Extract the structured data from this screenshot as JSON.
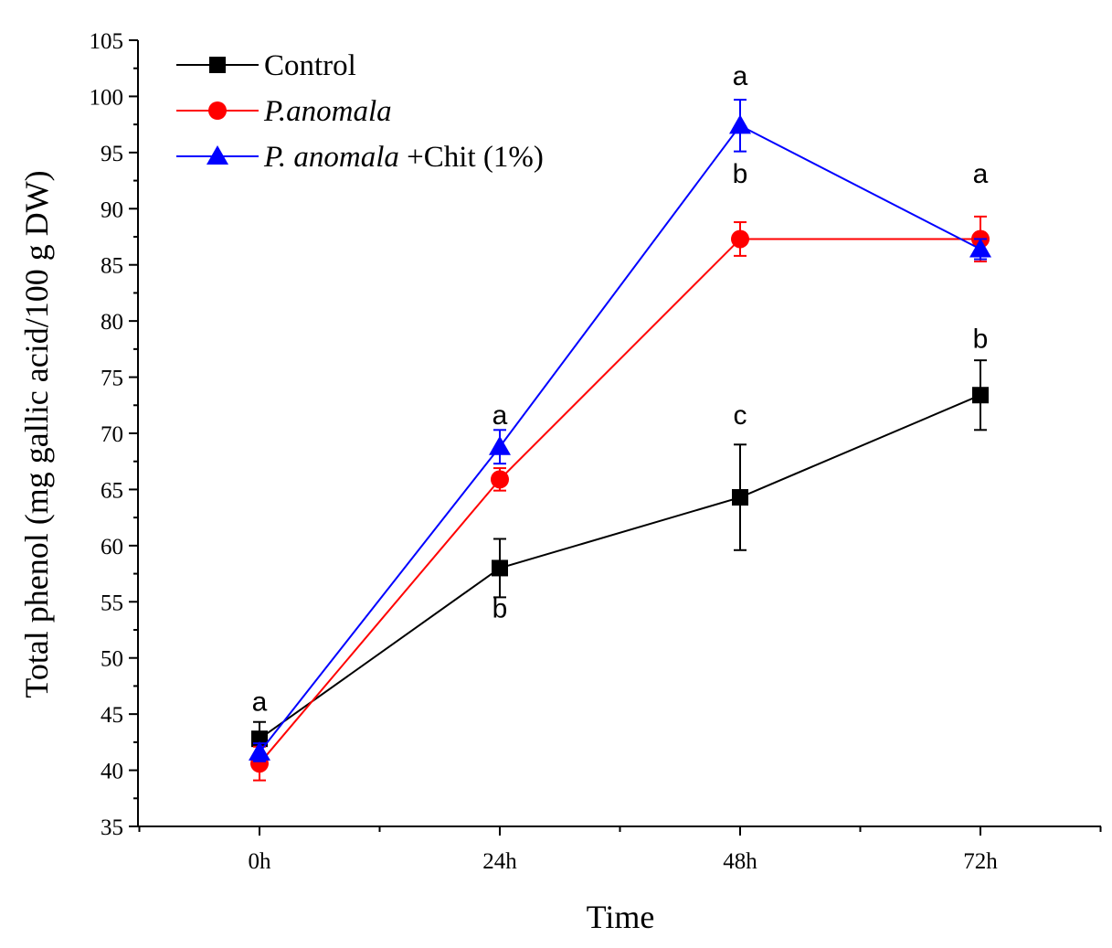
{
  "chart_data": {
    "type": "line",
    "title": "",
    "xlabel": "Time",
    "ylabel": "Total phenol (mg gallic acid/100 g DW)",
    "categories": [
      "0h",
      "24h",
      "48h",
      "72h"
    ],
    "ylim": [
      35,
      105
    ],
    "yticks": [
      35,
      40,
      45,
      50,
      55,
      60,
      65,
      70,
      75,
      80,
      85,
      90,
      95,
      100,
      105
    ],
    "grid": false,
    "legend_position": "top-left",
    "series": [
      {
        "name": "Control",
        "legend": [
          {
            "text": "Control",
            "italic": false
          }
        ],
        "color": "#000000",
        "marker": "square",
        "values": [
          42.8,
          58.0,
          64.3,
          73.4
        ],
        "errors": [
          1.5,
          2.6,
          4.7,
          3.1
        ]
      },
      {
        "name": "P.anomala",
        "legend": [
          {
            "text": "P.anomala",
            "italic": true
          }
        ],
        "color": "#ff0000",
        "marker": "circle",
        "values": [
          40.6,
          65.9,
          87.3,
          87.3
        ],
        "errors": [
          1.5,
          1.0,
          1.5,
          2.0
        ]
      },
      {
        "name": "P. anomala +Chit (1%)",
        "legend": [
          {
            "text": "P. anomala",
            "italic": true
          },
          {
            "text": " +Chit (1%)",
            "italic": false
          }
        ],
        "color": "#0000ff",
        "marker": "triangle",
        "values": [
          41.6,
          68.8,
          97.4,
          86.4
        ],
        "errors": [
          0.8,
          1.5,
          2.3,
          0.9
        ]
      }
    ],
    "annotations": [
      {
        "text": "a",
        "x": "0h",
        "y": 45.3
      },
      {
        "text": "a",
        "x": "24h",
        "y": 70.8
      },
      {
        "text": "b",
        "x": "24h",
        "y": 53.6
      },
      {
        "text": "a",
        "x": "48h",
        "y": 101.0
      },
      {
        "text": "b",
        "x": "48h",
        "y": 92.3
      },
      {
        "text": "c",
        "x": "48h",
        "y": 70.8
      },
      {
        "text": "a",
        "x": "72h",
        "y": 92.3
      },
      {
        "text": "b",
        "x": "72h",
        "y": 77.6
      }
    ]
  }
}
